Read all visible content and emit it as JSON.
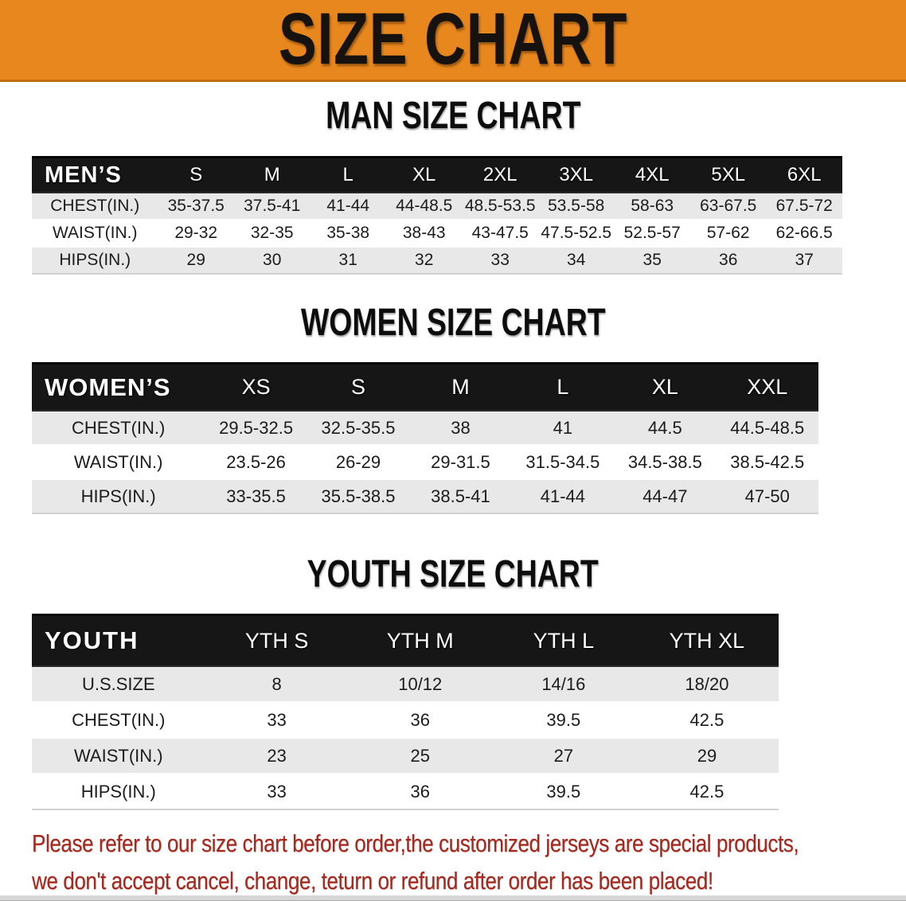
{
  "banner": {
    "title": "SIZE CHART"
  },
  "colors": {
    "banner_bg": "#E8871E",
    "table_header_bg": "#161616",
    "row_alt_bg": "#E8E8E8",
    "disclaimer_red": "#A8281E"
  },
  "sections": [
    {
      "heading": "MAN SIZE CHART",
      "table": {
        "header": [
          "MEN’S",
          "S",
          "M",
          "L",
          "XL",
          "2XL",
          "3XL",
          "4XL",
          "5XL",
          "6XL"
        ],
        "rows": [
          [
            "CHEST(IN.)",
            "35-37.5",
            "37.5-41",
            "41-44",
            "44-48.5",
            "48.5-53.5",
            "53.5-58",
            "58-63",
            "63-67.5",
            "67.5-72"
          ],
          [
            "WAIST(IN.)",
            "29-32",
            "32-35",
            "35-38",
            "38-43",
            "43-47.5",
            "47.5-52.5",
            "52.5-57",
            "57-62",
            "62-66.5"
          ],
          [
            "HIPS(IN.)",
            "29",
            "30",
            "31",
            "32",
            "33",
            "34",
            "35",
            "36",
            "37"
          ]
        ]
      }
    },
    {
      "heading": "WOMEN SIZE CHART",
      "table": {
        "header": [
          "WOMEN’S",
          "XS",
          "S",
          "M",
          "L",
          "XL",
          "XXL"
        ],
        "rows": [
          [
            "CHEST(IN.)",
            "29.5-32.5",
            "32.5-35.5",
            "38",
            "41",
            "44.5",
            "44.5-48.5"
          ],
          [
            "WAIST(IN.)",
            "23.5-26",
            "26-29",
            "29-31.5",
            "31.5-34.5",
            "34.5-38.5",
            "38.5-42.5"
          ],
          [
            "HIPS(IN.)",
            "33-35.5",
            "35.5-38.5",
            "38.5-41",
            "41-44",
            "44-47",
            "47-50"
          ]
        ]
      }
    },
    {
      "heading": "YOUTH SIZE CHART",
      "table": {
        "header": [
          "YOUTH",
          "YTH S",
          "YTH M",
          "YTH L",
          "YTH XL"
        ],
        "rows": [
          [
            "U.S.SIZE",
            "8",
            "10/12",
            "14/16",
            "18/20"
          ],
          [
            "CHEST(IN.)",
            "33",
            "36",
            "39.5",
            "42.5"
          ],
          [
            "WAIST(IN.)",
            "23",
            "25",
            "27",
            "29"
          ],
          [
            "HIPS(IN.)",
            "33",
            "36",
            "39.5",
            "42.5"
          ]
        ]
      }
    }
  ],
  "disclaimer": {
    "line1": "Please refer to our size chart before order,the customized jerseys are special products,",
    "line2": "we don't accept cancel, change, teturn or refund after order has been placed!"
  }
}
